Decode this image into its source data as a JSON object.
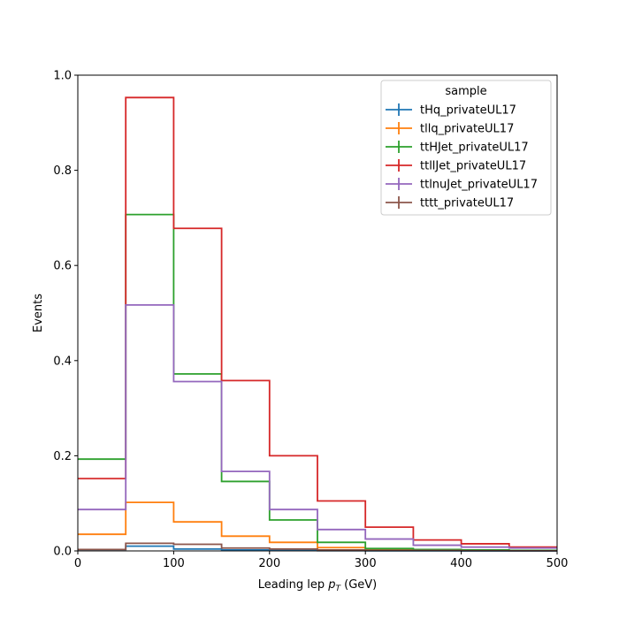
{
  "chart_data": {
    "type": "line",
    "style": "step-histogram",
    "xlabel_prefix": "Leading lep ",
    "xlabel_symbol": "p",
    "xlabel_sub": "T",
    "xlabel_unit": " (GeV)",
    "ylabel": "Events",
    "xlim": [
      0,
      500
    ],
    "ylim": [
      0,
      1.0
    ],
    "xticks": [
      "0",
      "100",
      "200",
      "300",
      "400",
      "500"
    ],
    "yticks": [
      "0.0",
      "0.2",
      "0.4",
      "0.6",
      "0.8",
      "1.0"
    ],
    "bin_edges": [
      0,
      50,
      100,
      150,
      200,
      250,
      300,
      350,
      400,
      450,
      500
    ],
    "legend_title": "sample",
    "legend_position": "top-right",
    "grid": false,
    "series": [
      {
        "name": "tHq_privateUL17",
        "color": "#1f77b4",
        "values": [
          0.003,
          0.01,
          0.004,
          0.002,
          0.001,
          0.0005,
          0.0003,
          0.0002,
          0.0001,
          0.0001
        ]
      },
      {
        "name": "tllq_privateUL17",
        "color": "#ff7f0e",
        "values": [
          0.035,
          0.102,
          0.061,
          0.031,
          0.018,
          0.007,
          0.004,
          0.002,
          0.001,
          0.001
        ]
      },
      {
        "name": "ttHJet_privateUL17",
        "color": "#2ca02c",
        "values": [
          0.193,
          0.707,
          0.372,
          0.146,
          0.065,
          0.018,
          0.005,
          0.003,
          0.002,
          0.001
        ]
      },
      {
        "name": "ttllJet_privateUL17",
        "color": "#d62728",
        "values": [
          0.152,
          0.953,
          0.678,
          0.358,
          0.2,
          0.105,
          0.05,
          0.023,
          0.015,
          0.008
        ]
      },
      {
        "name": "ttlnuJet_privateUL17",
        "color": "#9467bd",
        "values": [
          0.087,
          0.517,
          0.356,
          0.167,
          0.087,
          0.045,
          0.025,
          0.012,
          0.008,
          0.006
        ]
      },
      {
        "name": "tttt_privateUL17",
        "color": "#8c564b",
        "values": [
          0.003,
          0.016,
          0.014,
          0.006,
          0.004,
          0.002,
          0.001,
          0.001,
          0.0005,
          0.0003
        ]
      }
    ]
  }
}
